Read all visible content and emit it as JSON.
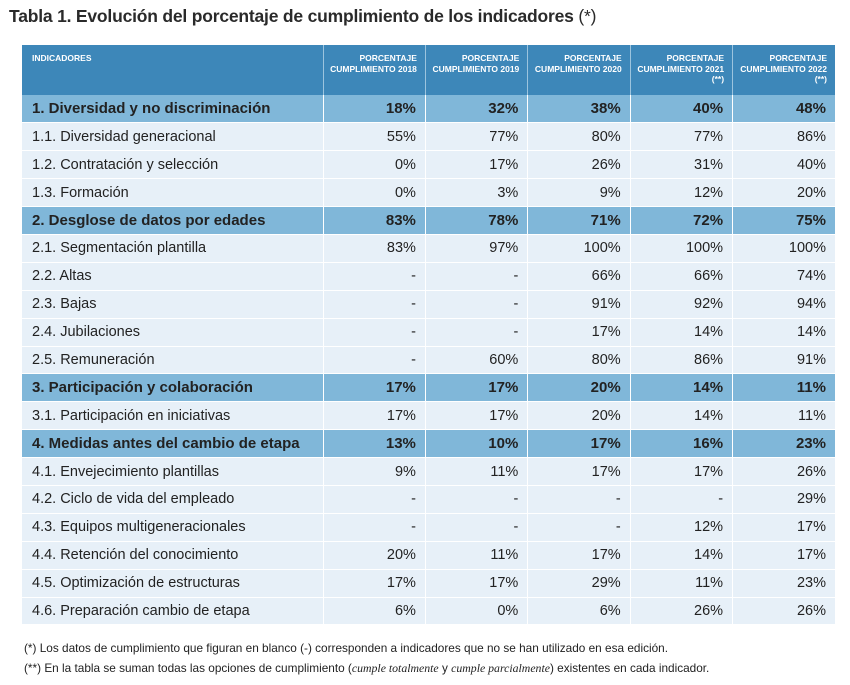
{
  "title": {
    "bold": "Tabla 1. Evolución del porcentaje de cumplimiento de los indicadores",
    "suffix": " (*)"
  },
  "headers": [
    "INDICADORES",
    "PORCENTAJE CUMPLIMIENTO 2018",
    "PORCENTAJE CUMPLIMIENTO 2019",
    "PORCENTAJE CUMPLIMIENTO 2020",
    "PORCENTAJE CUMPLIMIENTO 2021 (**)",
    "PORCENTAJE CUMPLIMIENTO 2022 (**)"
  ],
  "rows": [
    {
      "type": "sec",
      "label": "1. Diversidad y no discriminación",
      "values": [
        "18%",
        "32%",
        "38%",
        "40%",
        "48%"
      ]
    },
    {
      "type": "item",
      "label": "1.1. Diversidad generacional",
      "values": [
        "55%",
        "77%",
        "80%",
        "77%",
        "86%"
      ]
    },
    {
      "type": "item",
      "label": "1.2. Contratación y selección",
      "values": [
        "0%",
        "17%",
        "26%",
        "31%",
        "40%"
      ]
    },
    {
      "type": "item",
      "label": "1.3. Formación",
      "values": [
        "0%",
        "3%",
        "9%",
        "12%",
        "20%"
      ]
    },
    {
      "type": "sec",
      "label": "2. Desglose de datos por edades",
      "values": [
        "83%",
        "78%",
        "71%",
        "72%",
        "75%"
      ]
    },
    {
      "type": "item",
      "label": "2.1. Segmentación plantilla",
      "values": [
        "83%",
        "97%",
        "100%",
        "100%",
        "100%"
      ]
    },
    {
      "type": "item",
      "label": "2.2. Altas",
      "values": [
        "-",
        "-",
        "66%",
        "66%",
        "74%"
      ]
    },
    {
      "type": "item",
      "label": "2.3. Bajas",
      "values": [
        "-",
        "-",
        "91%",
        "92%",
        "94%"
      ]
    },
    {
      "type": "item",
      "label": "2.4. Jubilaciones",
      "values": [
        "-",
        "-",
        "17%",
        "14%",
        "14%"
      ]
    },
    {
      "type": "item",
      "label": "2.5. Remuneración",
      "values": [
        "-",
        "60%",
        "80%",
        "86%",
        "91%"
      ]
    },
    {
      "type": "sec",
      "label": "3. Participación y colaboración",
      "values": [
        "17%",
        "17%",
        "20%",
        "14%",
        "11%"
      ]
    },
    {
      "type": "item",
      "label": "3.1. Participación en iniciativas",
      "values": [
        "17%",
        "17%",
        "20%",
        "14%",
        "11%"
      ]
    },
    {
      "type": "sec",
      "label": "4. Medidas antes del cambio de etapa",
      "values": [
        "13%",
        "10%",
        "17%",
        "16%",
        "23%"
      ]
    },
    {
      "type": "item",
      "label": "4.1. Envejecimiento plantillas",
      "values": [
        "9%",
        "11%",
        "17%",
        "17%",
        "26%"
      ]
    },
    {
      "type": "item",
      "label": "4.2. Ciclo de vida del empleado",
      "values": [
        "-",
        "-",
        "-",
        "-",
        "29%"
      ]
    },
    {
      "type": "item",
      "label": "4.3. Equipos multigeneracionales",
      "values": [
        "-",
        "-",
        "-",
        "12%",
        "17%"
      ]
    },
    {
      "type": "item",
      "label": "4.4. Retención del conocimiento",
      "values": [
        "20%",
        "11%",
        "17%",
        "14%",
        "17%"
      ]
    },
    {
      "type": "item",
      "label": "4.5. Optimización de estructuras",
      "values": [
        "17%",
        "17%",
        "29%",
        "11%",
        "23%"
      ]
    },
    {
      "type": "item",
      "label": "4.6. Preparación cambio de etapa",
      "values": [
        "6%",
        "0%",
        "6%",
        "26%",
        "26%"
      ]
    }
  ],
  "notes": {
    "note1": "(*) Los datos de cumplimiento que figuran en blanco (-) corresponden a indicadores que no se han utilizado en esa edición.",
    "note2_a": "(**) En la tabla se suman todas las opciones de cumplimiento (",
    "note2_i1": "cumple totalmente",
    "note2_b": " y ",
    "note2_i2": "cumple parcialmente",
    "note2_c": ") existentes en cada indicador."
  },
  "colors": {
    "header": "#3d87b9",
    "section": "#80b7d9",
    "row": "#e7f0f8"
  }
}
